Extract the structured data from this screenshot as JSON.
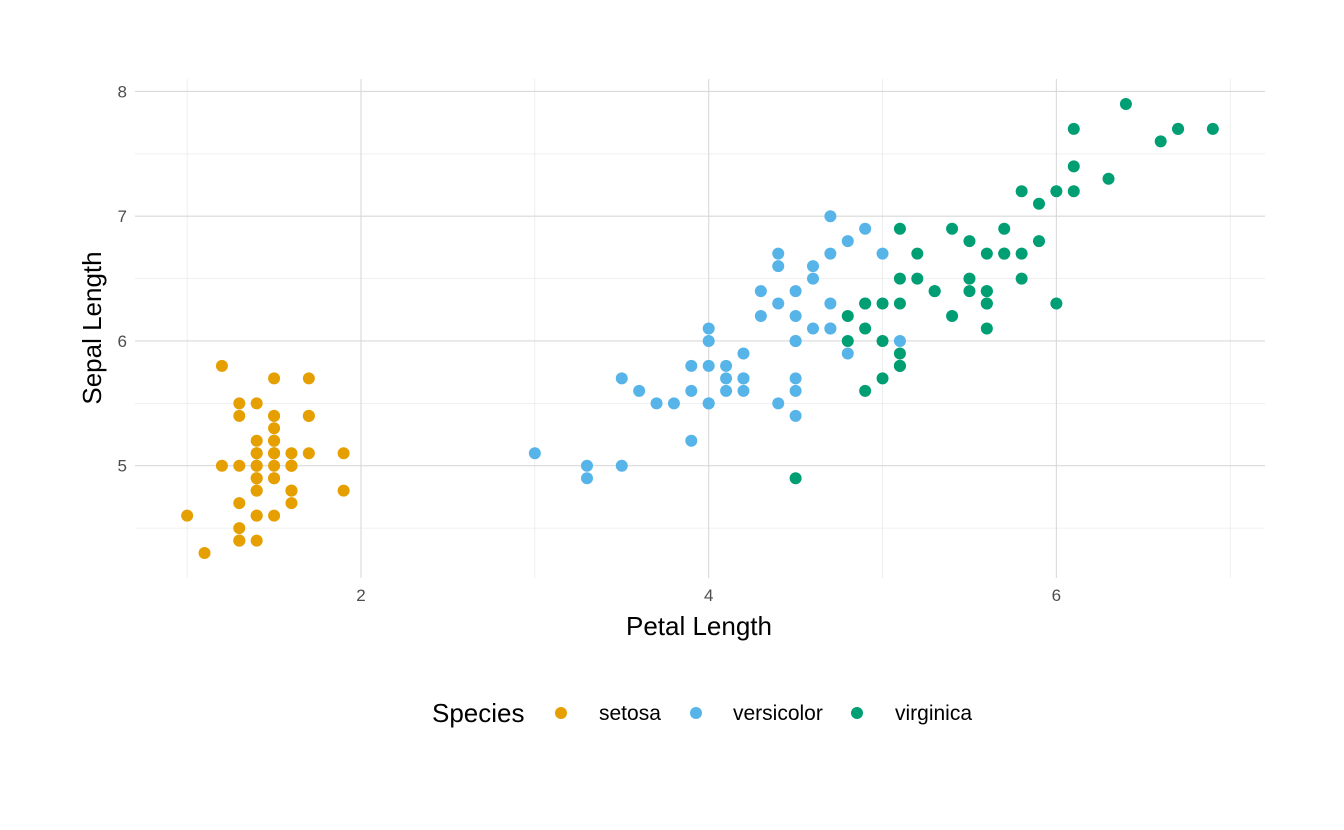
{
  "chart_data": {
    "type": "scatter",
    "title": "",
    "xlabel": "Petal Length",
    "ylabel": "Sepal Length",
    "xlim": [
      0.7,
      7.2
    ],
    "ylim": [
      4.1,
      8.1
    ],
    "x_ticks": [
      2,
      4,
      6
    ],
    "y_ticks": [
      5,
      6,
      7,
      8
    ],
    "grid": true,
    "legend": {
      "title": "Species",
      "position": "bottom"
    },
    "series": [
      {
        "name": "setosa",
        "color": "#E69F00",
        "points": [
          [
            1.4,
            5.1
          ],
          [
            1.4,
            4.9
          ],
          [
            1.3,
            4.7
          ],
          [
            1.5,
            4.6
          ],
          [
            1.4,
            5.0
          ],
          [
            1.7,
            5.4
          ],
          [
            1.4,
            4.6
          ],
          [
            1.5,
            5.0
          ],
          [
            1.4,
            4.4
          ],
          [
            1.5,
            4.9
          ],
          [
            1.5,
            5.4
          ],
          [
            1.6,
            4.8
          ],
          [
            1.4,
            4.8
          ],
          [
            1.1,
            4.3
          ],
          [
            1.2,
            5.8
          ],
          [
            1.5,
            5.7
          ],
          [
            1.3,
            5.4
          ],
          [
            1.4,
            5.1
          ],
          [
            1.7,
            5.7
          ],
          [
            1.5,
            5.1
          ],
          [
            1.7,
            5.4
          ],
          [
            1.5,
            5.1
          ],
          [
            1.0,
            4.6
          ],
          [
            1.7,
            5.1
          ],
          [
            1.9,
            4.8
          ],
          [
            1.6,
            5.0
          ],
          [
            1.6,
            5.0
          ],
          [
            1.5,
            5.2
          ],
          [
            1.4,
            5.2
          ],
          [
            1.6,
            4.7
          ],
          [
            1.6,
            4.8
          ],
          [
            1.5,
            5.4
          ],
          [
            1.5,
            5.2
          ],
          [
            1.4,
            5.5
          ],
          [
            1.5,
            4.9
          ],
          [
            1.2,
            5.0
          ],
          [
            1.3,
            5.5
          ],
          [
            1.4,
            4.9
          ],
          [
            1.3,
            4.4
          ],
          [
            1.5,
            5.1
          ],
          [
            1.3,
            5.0
          ],
          [
            1.3,
            4.5
          ],
          [
            1.3,
            4.4
          ],
          [
            1.6,
            5.0
          ],
          [
            1.9,
            5.1
          ],
          [
            1.4,
            4.8
          ],
          [
            1.6,
            5.1
          ],
          [
            1.4,
            4.6
          ],
          [
            1.5,
            5.3
          ],
          [
            1.4,
            5.0
          ]
        ]
      },
      {
        "name": "versicolor",
        "color": "#56B4E9",
        "points": [
          [
            4.7,
            7.0
          ],
          [
            4.5,
            6.4
          ],
          [
            4.9,
            6.9
          ],
          [
            4.0,
            5.5
          ],
          [
            4.6,
            6.5
          ],
          [
            4.5,
            5.7
          ],
          [
            4.7,
            6.3
          ],
          [
            3.3,
            4.9
          ],
          [
            4.6,
            6.6
          ],
          [
            3.9,
            5.2
          ],
          [
            3.5,
            5.0
          ],
          [
            4.2,
            5.9
          ],
          [
            4.0,
            6.0
          ],
          [
            4.7,
            6.1
          ],
          [
            3.6,
            5.6
          ],
          [
            4.4,
            6.7
          ],
          [
            4.5,
            5.6
          ],
          [
            4.1,
            5.8
          ],
          [
            4.5,
            6.2
          ],
          [
            3.9,
            5.6
          ],
          [
            4.8,
            5.9
          ],
          [
            4.0,
            6.1
          ],
          [
            4.9,
            6.3
          ],
          [
            4.7,
            6.1
          ],
          [
            4.3,
            6.4
          ],
          [
            4.4,
            6.6
          ],
          [
            4.8,
            6.8
          ],
          [
            5.0,
            6.7
          ],
          [
            4.5,
            6.0
          ],
          [
            3.5,
            5.7
          ],
          [
            3.8,
            5.5
          ],
          [
            3.7,
            5.5
          ],
          [
            3.9,
            5.8
          ],
          [
            5.1,
            6.0
          ],
          [
            4.5,
            5.4
          ],
          [
            4.5,
            6.0
          ],
          [
            4.7,
            6.7
          ],
          [
            4.4,
            6.3
          ],
          [
            4.1,
            5.6
          ],
          [
            4.0,
            5.5
          ],
          [
            4.4,
            5.5
          ],
          [
            4.6,
            6.1
          ],
          [
            4.0,
            5.8
          ],
          [
            3.3,
            5.0
          ],
          [
            4.2,
            5.6
          ],
          [
            4.2,
            5.7
          ],
          [
            4.2,
            5.7
          ],
          [
            4.3,
            6.2
          ],
          [
            3.0,
            5.1
          ],
          [
            4.1,
            5.7
          ]
        ]
      },
      {
        "name": "virginica",
        "color": "#009E73",
        "points": [
          [
            6.0,
            6.3
          ],
          [
            5.1,
            5.8
          ],
          [
            5.9,
            7.1
          ],
          [
            5.6,
            6.3
          ],
          [
            5.8,
            6.5
          ],
          [
            6.6,
            7.6
          ],
          [
            4.5,
            4.9
          ],
          [
            6.3,
            7.3
          ],
          [
            5.8,
            6.7
          ],
          [
            6.1,
            7.2
          ],
          [
            5.1,
            6.5
          ],
          [
            5.3,
            6.4
          ],
          [
            5.5,
            6.8
          ],
          [
            5.0,
            5.7
          ],
          [
            5.1,
            5.8
          ],
          [
            5.3,
            6.4
          ],
          [
            5.5,
            6.5
          ],
          [
            6.7,
            7.7
          ],
          [
            6.9,
            7.7
          ],
          [
            5.0,
            6.0
          ],
          [
            5.7,
            6.9
          ],
          [
            4.9,
            5.6
          ],
          [
            6.7,
            7.7
          ],
          [
            4.9,
            6.3
          ],
          [
            5.7,
            6.7
          ],
          [
            6.0,
            7.2
          ],
          [
            4.8,
            6.2
          ],
          [
            4.9,
            6.1
          ],
          [
            5.6,
            6.4
          ],
          [
            5.8,
            7.2
          ],
          [
            6.1,
            7.4
          ],
          [
            6.4,
            7.9
          ],
          [
            5.6,
            6.4
          ],
          [
            5.1,
            6.3
          ],
          [
            5.6,
            6.1
          ],
          [
            6.1,
            7.7
          ],
          [
            5.6,
            6.3
          ],
          [
            5.5,
            6.4
          ],
          [
            4.8,
            6.0
          ],
          [
            5.4,
            6.9
          ],
          [
            5.6,
            6.7
          ],
          [
            5.1,
            6.9
          ],
          [
            5.1,
            5.8
          ],
          [
            5.9,
            6.8
          ],
          [
            5.7,
            6.7
          ],
          [
            5.2,
            6.7
          ],
          [
            5.0,
            6.3
          ],
          [
            5.2,
            6.5
          ],
          [
            5.4,
            6.2
          ],
          [
            5.1,
            5.9
          ]
        ]
      }
    ]
  }
}
